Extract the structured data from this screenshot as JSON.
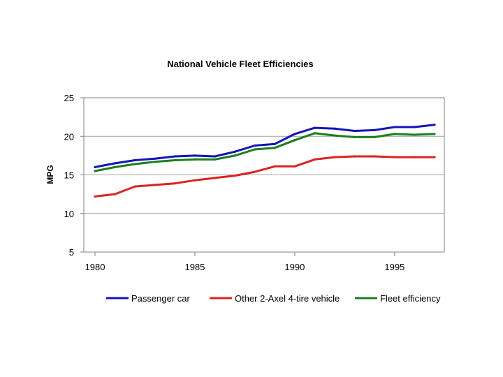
{
  "chart_data": {
    "type": "line",
    "title": "National Vehicle Fleet Efficiencies",
    "xlabel": "",
    "ylabel": "MPG",
    "xlim": [
      1980,
      1997
    ],
    "ylim": [
      5,
      25
    ],
    "x_ticks": [
      1980,
      1985,
      1990,
      1995
    ],
    "y_ticks": [
      5,
      10,
      15,
      20,
      25
    ],
    "grid": "horizontal",
    "legend_position": "bottom",
    "x": [
      1980,
      1981,
      1982,
      1983,
      1984,
      1985,
      1986,
      1987,
      1988,
      1989,
      1990,
      1991,
      1992,
      1993,
      1994,
      1995,
      1996,
      1997
    ],
    "series": [
      {
        "name": "Passenger car",
        "color": "#1414b8",
        "values": [
          16.0,
          16.5,
          16.9,
          17.1,
          17.4,
          17.5,
          17.4,
          18.0,
          18.8,
          19.0,
          20.3,
          21.1,
          21.0,
          20.7,
          20.8,
          21.2,
          21.2,
          21.5
        ]
      },
      {
        "name": "Other 2-Axel 4-tire vehicle",
        "color": "#dd2222",
        "values": [
          12.2,
          12.5,
          13.5,
          13.7,
          13.9,
          14.3,
          14.6,
          14.9,
          15.4,
          16.1,
          16.1,
          17.0,
          17.3,
          17.4,
          17.4,
          17.3,
          17.3,
          17.3
        ]
      },
      {
        "name": "Fleet efficiency",
        "color": "#1b7f1b",
        "values": [
          15.5,
          16.0,
          16.4,
          16.7,
          16.9,
          17.0,
          17.0,
          17.5,
          18.3,
          18.5,
          19.5,
          20.4,
          20.1,
          19.9,
          19.9,
          20.3,
          20.2,
          20.3
        ]
      }
    ]
  }
}
